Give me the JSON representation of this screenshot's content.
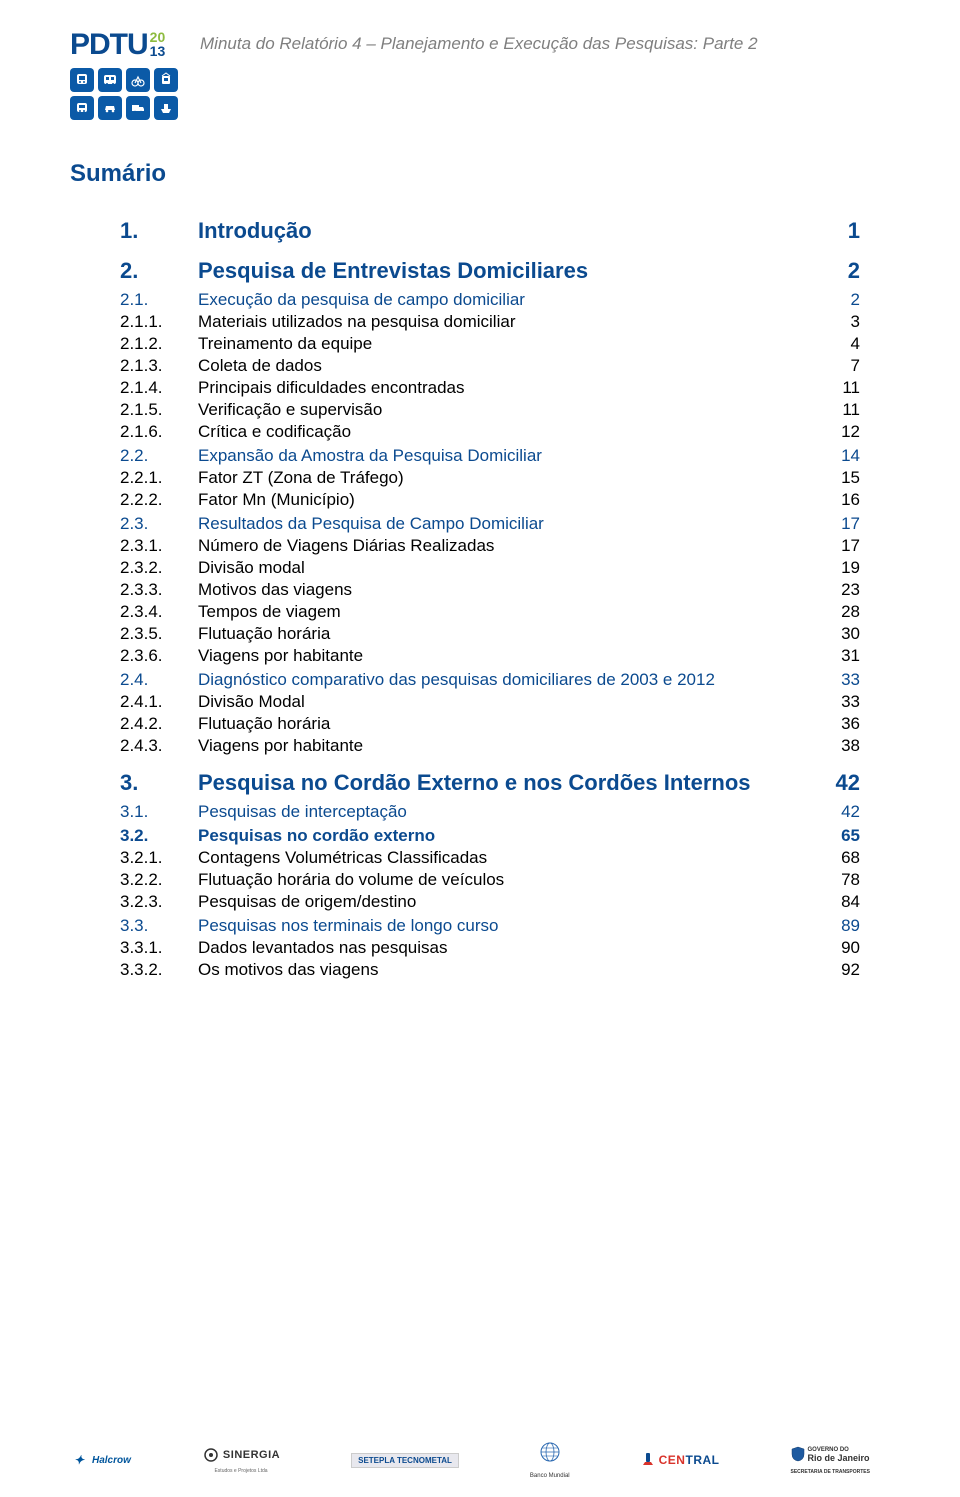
{
  "colors": {
    "brand_blue": "#0b4a8f",
    "header_gray": "#7f7f7f",
    "logo_green": "#8dbb3f",
    "icon_blue": "#0b5aa7",
    "black": "#000000",
    "white": "#ffffff"
  },
  "typography": {
    "font_family": "Arial",
    "doc_title_fontsize": 17,
    "sumario_fontsize": 24,
    "lvl1_fontsize": 22,
    "lvl2_fontsize": 17,
    "lvl3_fontsize": 17
  },
  "logo": {
    "text": "PDTU",
    "year_top": "20",
    "year_bottom": "13"
  },
  "doc_title": "Minuta do Relatório 4 – Planejamento e Execução das Pesquisas: Parte 2",
  "sumario_label": "Sumário",
  "toc": [
    {
      "level": "lvl1",
      "num": "1.",
      "title": "Introdução",
      "page": "1"
    },
    {
      "level": "lvl1",
      "num": "2.",
      "title": "Pesquisa de Entrevistas Domiciliares",
      "page": "2"
    },
    {
      "level": "lvl2",
      "num": "2.1.",
      "title": "Execução da pesquisa de campo domiciliar",
      "page": "2"
    },
    {
      "level": "lvl3",
      "num": "2.1.1.",
      "title": "Materiais utilizados na pesquisa domiciliar",
      "page": "3"
    },
    {
      "level": "lvl3",
      "num": "2.1.2.",
      "title": "Treinamento da equipe",
      "page": "4"
    },
    {
      "level": "lvl3",
      "num": "2.1.3.",
      "title": "Coleta de dados",
      "page": "7"
    },
    {
      "level": "lvl3",
      "num": "2.1.4.",
      "title": "Principais dificuldades encontradas",
      "page": "11"
    },
    {
      "level": "lvl3",
      "num": "2.1.5.",
      "title": "Verificação e supervisão",
      "page": "11"
    },
    {
      "level": "lvl3",
      "num": "2.1.6.",
      "title": "Crítica e codificação",
      "page": "12"
    },
    {
      "level": "lvl2",
      "num": "2.2.",
      "title": "Expansão da Amostra da Pesquisa Domiciliar",
      "page": "14"
    },
    {
      "level": "lvl3",
      "num": "2.2.1.",
      "title": "Fator ZT (Zona de Tráfego)",
      "page": "15"
    },
    {
      "level": "lvl3",
      "num": "2.2.2.",
      "title": "Fator Mn (Município)",
      "page": "16"
    },
    {
      "level": "lvl2",
      "num": "2.3.",
      "title": "Resultados da Pesquisa de Campo Domiciliar",
      "page": "17"
    },
    {
      "level": "lvl3",
      "num": "2.3.1.",
      "title": "Número de Viagens Diárias Realizadas",
      "page": "17"
    },
    {
      "level": "lvl3",
      "num": "2.3.2.",
      "title": "Divisão modal",
      "page": "19"
    },
    {
      "level": "lvl3",
      "num": "2.3.3.",
      "title": "Motivos das viagens",
      "page": "23"
    },
    {
      "level": "lvl3",
      "num": "2.3.4.",
      "title": "Tempos de viagem",
      "page": "28"
    },
    {
      "level": "lvl3",
      "num": "2.3.5.",
      "title": "Flutuação horária",
      "page": "30"
    },
    {
      "level": "lvl3",
      "num": "2.3.6.",
      "title": "Viagens por habitante",
      "page": "31"
    },
    {
      "level": "lvl2",
      "num": "2.4.",
      "title": "Diagnóstico comparativo das pesquisas domiciliares de 2003 e 2012",
      "page": "33"
    },
    {
      "level": "lvl3",
      "num": "2.4.1.",
      "title": "Divisão Modal",
      "page": "33"
    },
    {
      "level": "lvl3",
      "num": "2.4.2.",
      "title": "Flutuação horária",
      "page": "36"
    },
    {
      "level": "lvl3",
      "num": "2.4.3.",
      "title": "Viagens por habitante",
      "page": "38"
    },
    {
      "level": "lvl1",
      "num": "3.",
      "title": "Pesquisa no Cordão Externo e nos Cordões Internos",
      "page": "42"
    },
    {
      "level": "lvl2",
      "num": "3.1.",
      "title": "Pesquisas de interceptação",
      "page": "42"
    },
    {
      "level": "lvl2b",
      "num": "3.2.",
      "title": "Pesquisas no cordão externo",
      "page": "65"
    },
    {
      "level": "lvl3",
      "num": "3.2.1.",
      "title": "Contagens Volumétricas Classificadas",
      "page": "68"
    },
    {
      "level": "lvl3",
      "num": "3.2.2.",
      "title": "Flutuação horária do volume de veículos",
      "page": "78"
    },
    {
      "level": "lvl3",
      "num": "3.2.3.",
      "title": "Pesquisas de origem/destino",
      "page": "84"
    },
    {
      "level": "lvl2",
      "num": "3.3.",
      "title": "Pesquisas nos terminais de longo curso",
      "page": "89"
    },
    {
      "level": "lvl3",
      "num": "3.3.1.",
      "title": "Dados levantados nas pesquisas",
      "page": "90"
    },
    {
      "level": "lvl3",
      "num": "3.3.2.",
      "title": "Os motivos das viagens",
      "page": "92"
    }
  ],
  "footer": {
    "halcrow": "Halcrow",
    "sinergia": "SINERGIA",
    "sinergia_sub": "Estudos e Projetos Ltda",
    "setepla": "SETEPLA TECNOMETAL",
    "banco": "Banco Mundial",
    "central": "CENTRAL",
    "rio_top": "GOVERNO DO",
    "rio_main": "Rio de Janeiro",
    "rio_sub": "SECRETARIA DE TRANSPORTES"
  }
}
